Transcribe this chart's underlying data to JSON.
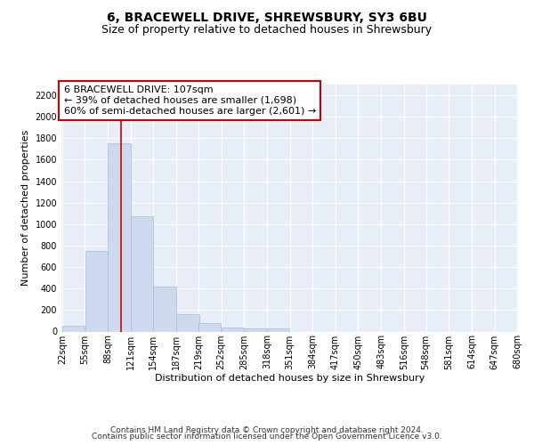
{
  "title": "6, BRACEWELL DRIVE, SHREWSBURY, SY3 6BU",
  "subtitle": "Size of property relative to detached houses in Shrewsbury",
  "xlabel": "Distribution of detached houses by size in Shrewsbury",
  "ylabel": "Number of detached properties",
  "bar_color": "#ccd9ef",
  "bar_edge_color": "#aabbd8",
  "background_color": "#e8eef8",
  "grid_color": "#ffffff",
  "annotation_text": "6 BRACEWELL DRIVE: 107sqm\n← 39% of detached houses are smaller (1,698)\n60% of semi-detached houses are larger (2,601) →",
  "annotation_box_color": "#ffffff",
  "annotation_box_edge": "#cc0000",
  "vline_x": 107,
  "vline_color": "#cc0000",
  "bins_start": [
    22,
    55,
    88,
    121,
    154,
    187,
    219,
    252,
    285,
    318,
    351,
    384,
    417,
    450,
    483,
    516,
    548,
    581,
    614,
    647
  ],
  "bin_width": 33,
  "bar_heights": [
    50,
    750,
    1750,
    1070,
    420,
    160,
    80,
    40,
    30,
    25,
    0,
    0,
    0,
    0,
    0,
    0,
    0,
    0,
    0,
    0
  ],
  "ylim": [
    0,
    2300
  ],
  "yticks": [
    0,
    200,
    400,
    600,
    800,
    1000,
    1200,
    1400,
    1600,
    1800,
    2000,
    2200
  ],
  "xtick_labels": [
    "22sqm",
    "55sqm",
    "88sqm",
    "121sqm",
    "154sqm",
    "187sqm",
    "219sqm",
    "252sqm",
    "285sqm",
    "318sqm",
    "351sqm",
    "384sqm",
    "417sqm",
    "450sqm",
    "483sqm",
    "516sqm",
    "548sqm",
    "581sqm",
    "614sqm",
    "647sqm",
    "680sqm"
  ],
  "footer_line1": "Contains HM Land Registry data © Crown copyright and database right 2024.",
  "footer_line2": "Contains public sector information licensed under the Open Government Licence v3.0.",
  "title_fontsize": 10,
  "subtitle_fontsize": 9,
  "xlabel_fontsize": 8,
  "ylabel_fontsize": 8,
  "tick_fontsize": 7,
  "annotation_fontsize": 8,
  "footer_fontsize": 6.5
}
